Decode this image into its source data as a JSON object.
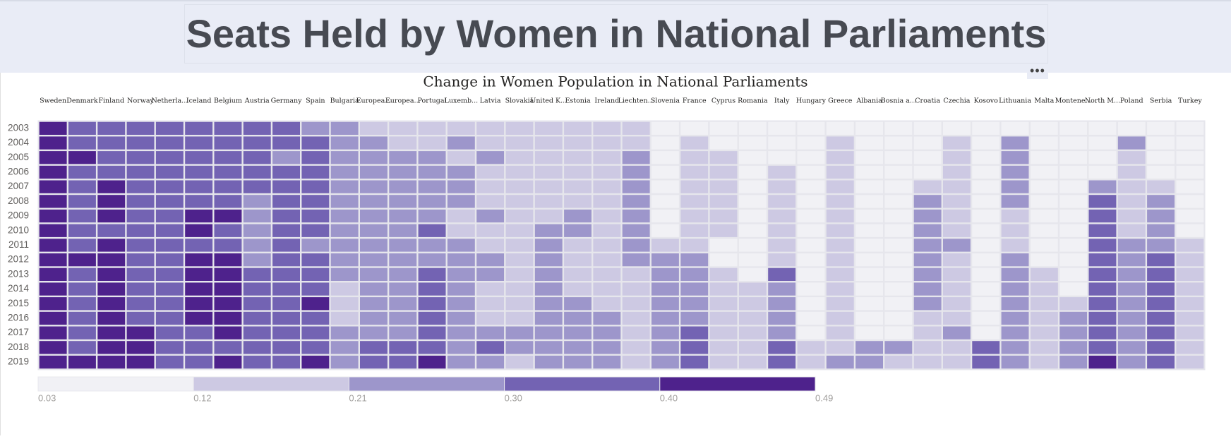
{
  "banner": {
    "title": "Seats Held by Women in National Parliaments"
  },
  "colors": {
    "banner_bg": "#e9ecf6",
    "title_text": "#474a52",
    "grid": "#e6e6ec",
    "scale": [
      "#f1f1f5",
      "#cdc9e3",
      "#9d96cb",
      "#7363b3",
      "#4e228c"
    ]
  },
  "menu": {
    "icon": "more-icon"
  },
  "chart_data": {
    "type": "heatmap",
    "title": "Change in Women Population in National Parliaments",
    "x": [
      "Sweden",
      "Denmark",
      "Finland",
      "Norway",
      "Netherla...",
      "Iceland",
      "Belgium",
      "Austria",
      "Germany",
      "Spain",
      "Bulgaria",
      "Europea...",
      "Europea...",
      "Portugal",
      "Luxemb...",
      "Latvia",
      "Slovakia",
      "United K...",
      "Estonia",
      "Ireland",
      "Liechten...",
      "Slovenia",
      "France",
      "Cyprus",
      "Romania",
      "Italy",
      "Hungary",
      "Greece",
      "Albania",
      "Bosnia a...",
      "Croatia",
      "Czechia",
      "Kosovo",
      "Lithuania",
      "Malta",
      "Montene...",
      "North M...",
      "Poland",
      "Serbia",
      "Turkey"
    ],
    "y": [
      "2003",
      "2004",
      "2005",
      "2006",
      "2007",
      "2008",
      "2009",
      "2010",
      "2011",
      "2012",
      "2013",
      "2014",
      "2015",
      "2016",
      "2017",
      "2018",
      "2019"
    ],
    "levels": [
      [
        4,
        3,
        3,
        3,
        3,
        3,
        3,
        3,
        3,
        2,
        2,
        1,
        1,
        1,
        1,
        1,
        1,
        1,
        1,
        1,
        1,
        0,
        0,
        0,
        0,
        0,
        0,
        0,
        0,
        0,
        0,
        0,
        0,
        0,
        0,
        0,
        0,
        0,
        0,
        0
      ],
      [
        4,
        3,
        3,
        3,
        3,
        3,
        3,
        3,
        3,
        3,
        2,
        2,
        1,
        1,
        2,
        1,
        1,
        1,
        1,
        1,
        1,
        0,
        1,
        0,
        0,
        0,
        0,
        1,
        0,
        0,
        0,
        1,
        0,
        2,
        0,
        0,
        0,
        2,
        0,
        0
      ],
      [
        4,
        4,
        3,
        3,
        3,
        3,
        3,
        3,
        2,
        3,
        2,
        2,
        2,
        2,
        1,
        2,
        1,
        1,
        1,
        1,
        2,
        0,
        1,
        1,
        0,
        0,
        0,
        1,
        0,
        0,
        0,
        1,
        0,
        2,
        0,
        0,
        0,
        1,
        0,
        0
      ],
      [
        4,
        3,
        3,
        3,
        3,
        3,
        3,
        3,
        3,
        3,
        2,
        2,
        2,
        2,
        2,
        1,
        1,
        1,
        1,
        1,
        2,
        0,
        1,
        1,
        0,
        1,
        0,
        1,
        0,
        0,
        0,
        1,
        0,
        2,
        0,
        0,
        0,
        1,
        0,
        0
      ],
      [
        4,
        3,
        4,
        3,
        3,
        3,
        3,
        3,
        3,
        3,
        2,
        2,
        2,
        2,
        2,
        1,
        1,
        1,
        1,
        1,
        2,
        0,
        1,
        1,
        0,
        1,
        0,
        1,
        0,
        0,
        1,
        1,
        0,
        2,
        0,
        0,
        2,
        1,
        1,
        0
      ],
      [
        4,
        3,
        4,
        3,
        3,
        3,
        3,
        2,
        3,
        3,
        2,
        2,
        2,
        2,
        2,
        1,
        1,
        1,
        1,
        1,
        2,
        0,
        1,
        1,
        0,
        1,
        0,
        1,
        0,
        0,
        2,
        1,
        0,
        2,
        0,
        0,
        3,
        1,
        2,
        0
      ],
      [
        4,
        3,
        4,
        3,
        3,
        4,
        4,
        2,
        3,
        3,
        2,
        2,
        2,
        2,
        1,
        2,
        1,
        1,
        2,
        1,
        2,
        0,
        1,
        1,
        0,
        1,
        0,
        1,
        0,
        0,
        2,
        1,
        0,
        1,
        0,
        0,
        3,
        1,
        2,
        0
      ],
      [
        4,
        3,
        3,
        3,
        3,
        4,
        3,
        2,
        3,
        3,
        2,
        2,
        2,
        3,
        1,
        1,
        1,
        2,
        2,
        1,
        2,
        0,
        1,
        1,
        0,
        1,
        0,
        1,
        0,
        0,
        2,
        1,
        0,
        1,
        0,
        0,
        3,
        1,
        2,
        0
      ],
      [
        4,
        3,
        4,
        3,
        3,
        3,
        3,
        2,
        3,
        2,
        2,
        2,
        2,
        2,
        2,
        1,
        1,
        2,
        1,
        1,
        2,
        1,
        1,
        0,
        0,
        1,
        0,
        1,
        0,
        0,
        2,
        2,
        0,
        1,
        0,
        0,
        3,
        2,
        2,
        1
      ],
      [
        4,
        4,
        4,
        3,
        3,
        4,
        4,
        2,
        3,
        3,
        2,
        2,
        2,
        2,
        2,
        2,
        1,
        2,
        1,
        1,
        2,
        2,
        2,
        0,
        0,
        1,
        0,
        1,
        0,
        0,
        2,
        1,
        0,
        2,
        0,
        0,
        3,
        2,
        3,
        1
      ],
      [
        4,
        3,
        4,
        3,
        3,
        4,
        4,
        3,
        3,
        3,
        2,
        2,
        2,
        3,
        2,
        2,
        1,
        2,
        1,
        1,
        1,
        2,
        2,
        1,
        0,
        3,
        0,
        1,
        0,
        0,
        2,
        1,
        0,
        2,
        1,
        0,
        3,
        2,
        3,
        1
      ],
      [
        4,
        3,
        4,
        3,
        3,
        4,
        4,
        3,
        3,
        3,
        1,
        2,
        2,
        3,
        2,
        1,
        1,
        2,
        1,
        1,
        1,
        2,
        2,
        1,
        1,
        2,
        0,
        1,
        0,
        0,
        2,
        1,
        0,
        2,
        1,
        0,
        3,
        2,
        3,
        1
      ],
      [
        4,
        3,
        4,
        3,
        3,
        4,
        4,
        3,
        3,
        4,
        1,
        2,
        2,
        3,
        2,
        1,
        1,
        2,
        2,
        1,
        1,
        2,
        2,
        1,
        1,
        2,
        0,
        1,
        0,
        0,
        2,
        1,
        0,
        2,
        1,
        1,
        3,
        2,
        3,
        1
      ],
      [
        4,
        3,
        4,
        3,
        3,
        4,
        4,
        3,
        3,
        3,
        1,
        2,
        2,
        3,
        2,
        1,
        1,
        2,
        2,
        2,
        1,
        2,
        2,
        1,
        1,
        2,
        0,
        1,
        0,
        0,
        1,
        1,
        0,
        2,
        1,
        2,
        3,
        2,
        3,
        1
      ],
      [
        4,
        3,
        4,
        4,
        3,
        3,
        4,
        3,
        3,
        3,
        2,
        2,
        2,
        3,
        2,
        2,
        2,
        2,
        2,
        2,
        1,
        2,
        3,
        1,
        1,
        2,
        0,
        1,
        0,
        0,
        1,
        2,
        0,
        2,
        1,
        2,
        3,
        2,
        3,
        1
      ],
      [
        4,
        3,
        4,
        4,
        3,
        3,
        3,
        3,
        3,
        3,
        2,
        3,
        3,
        3,
        2,
        3,
        2,
        2,
        2,
        2,
        1,
        2,
        3,
        1,
        1,
        3,
        1,
        1,
        2,
        2,
        1,
        1,
        3,
        2,
        1,
        2,
        3,
        2,
        3,
        1
      ],
      [
        4,
        4,
        4,
        4,
        3,
        3,
        4,
        3,
        3,
        4,
        2,
        3,
        3,
        4,
        2,
        2,
        1,
        2,
        2,
        2,
        1,
        2,
        3,
        1,
        1,
        3,
        1,
        2,
        2,
        1,
        1,
        1,
        3,
        2,
        1,
        2,
        4,
        2,
        3,
        1
      ]
    ],
    "legend": {
      "ticks": [
        "0.03",
        "0.12",
        "0.21",
        "0.30",
        "0.40",
        "0.49"
      ],
      "position": "bottom-left"
    },
    "grid": true
  }
}
